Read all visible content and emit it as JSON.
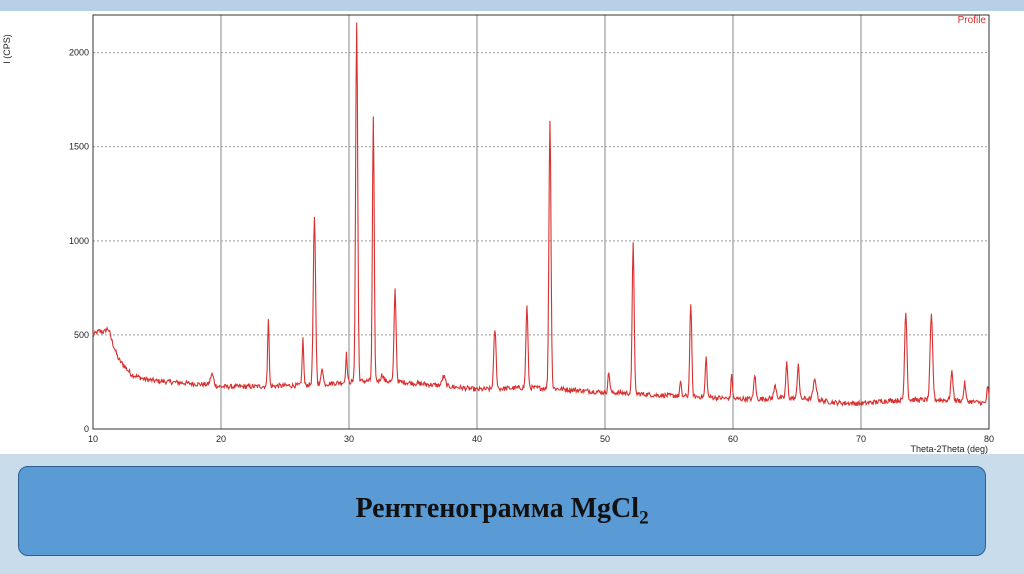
{
  "caption": {
    "text": "Рентгенограмма MgCl",
    "subscript": "2"
  },
  "chart_data": {
    "type": "line",
    "xlabel": "Theta-2Theta (deg)",
    "ylabel": "I (CPS)",
    "xlim": [
      10,
      80
    ],
    "ylim": [
      0,
      2200
    ],
    "xticks": [
      10,
      20,
      30,
      40,
      50,
      60,
      70,
      80
    ],
    "yticks": [
      0,
      500,
      1000,
      1500,
      2000
    ],
    "grid": true,
    "legend_position": "top-right",
    "line_color": "#d93030",
    "series": [
      {
        "name": "Profile",
        "baseline": [
          [
            10,
            500
          ],
          [
            10.5,
            520
          ],
          [
            11,
            510
          ],
          [
            11.5,
            460
          ],
          [
            12,
            370
          ],
          [
            13,
            290
          ],
          [
            14,
            265
          ],
          [
            15,
            255
          ],
          [
            16,
            250
          ],
          [
            17,
            245
          ],
          [
            18,
            240
          ],
          [
            19,
            235
          ],
          [
            20,
            225
          ],
          [
            22,
            225
          ],
          [
            24,
            228
          ],
          [
            26,
            232
          ],
          [
            28,
            238
          ],
          [
            29,
            245
          ],
          [
            30,
            250
          ],
          [
            32,
            258
          ],
          [
            34,
            250
          ],
          [
            36,
            238
          ],
          [
            38,
            225
          ],
          [
            40,
            210
          ],
          [
            42,
            215
          ],
          [
            44,
            220
          ],
          [
            46,
            215
          ],
          [
            48,
            205
          ],
          [
            50,
            195
          ],
          [
            52,
            190
          ],
          [
            54,
            180
          ],
          [
            56,
            175
          ],
          [
            58,
            170
          ],
          [
            60,
            160
          ],
          [
            62,
            160
          ],
          [
            64,
            165
          ],
          [
            66,
            160
          ],
          [
            68,
            140
          ],
          [
            70,
            135
          ],
          [
            72,
            150
          ],
          [
            74,
            155
          ],
          [
            76,
            155
          ],
          [
            78,
            150
          ],
          [
            80,
            135
          ]
        ],
        "peaks": [
          [
            10.6,
            520,
            0.3
          ],
          [
            11.2,
            530,
            0.3
          ],
          [
            19.3,
            290,
            0.25
          ],
          [
            23.7,
            590,
            0.12
          ],
          [
            26.4,
            480,
            0.12
          ],
          [
            27.3,
            1120,
            0.18
          ],
          [
            27.9,
            330,
            0.15
          ],
          [
            29.8,
            400,
            0.12
          ],
          [
            30.6,
            2160,
            0.16
          ],
          [
            31.9,
            1650,
            0.14
          ],
          [
            32.6,
            290,
            0.2
          ],
          [
            33.6,
            740,
            0.16
          ],
          [
            37.4,
            280,
            0.25
          ],
          [
            41.4,
            530,
            0.18
          ],
          [
            43.9,
            650,
            0.16
          ],
          [
            45.7,
            1640,
            0.16
          ],
          [
            50.3,
            300,
            0.15
          ],
          [
            52.2,
            1000,
            0.15
          ],
          [
            55.9,
            250,
            0.12
          ],
          [
            56.7,
            670,
            0.15
          ],
          [
            57.9,
            380,
            0.14
          ],
          [
            59.9,
            290,
            0.12
          ],
          [
            61.7,
            290,
            0.15
          ],
          [
            63.3,
            230,
            0.2
          ],
          [
            64.2,
            350,
            0.15
          ],
          [
            65.1,
            350,
            0.15
          ],
          [
            66.4,
            260,
            0.25
          ],
          [
            73.5,
            630,
            0.18
          ],
          [
            75.5,
            600,
            0.2
          ],
          [
            77.1,
            300,
            0.18
          ],
          [
            78.1,
            245,
            0.15
          ],
          [
            79.9,
            220,
            0.15
          ]
        ]
      }
    ]
  }
}
